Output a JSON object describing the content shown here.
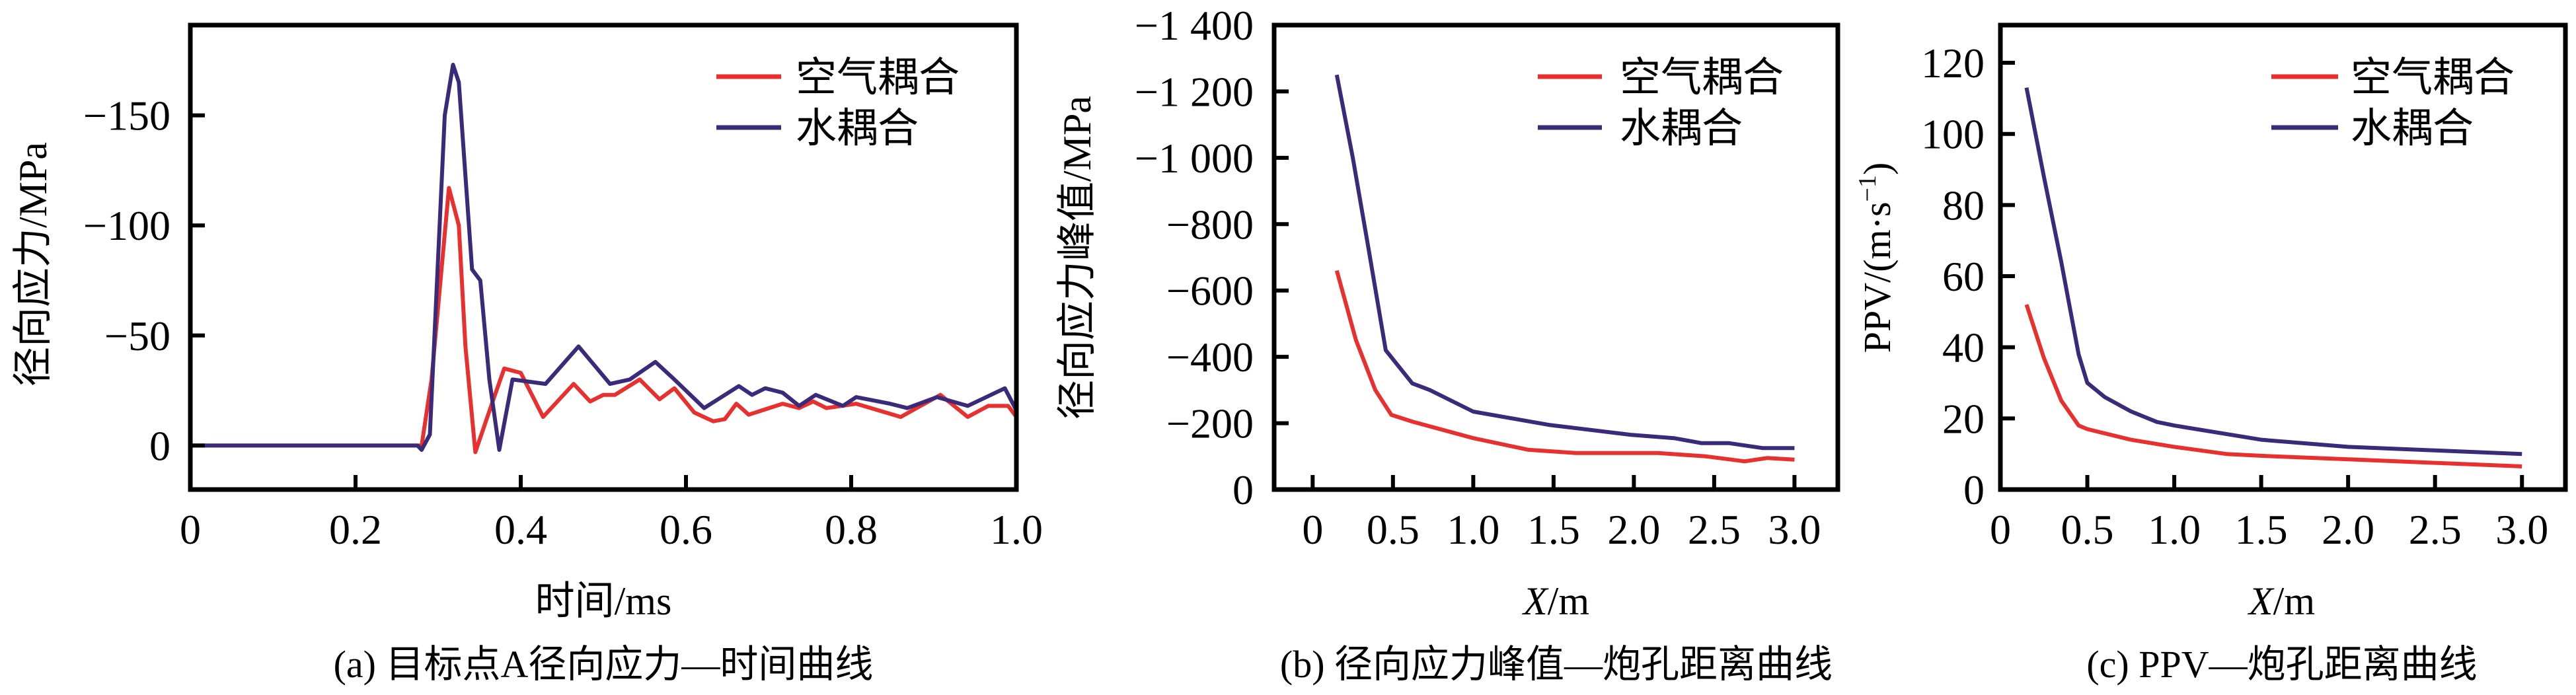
{
  "colors": {
    "air": "#e8302e",
    "water": "#3b2a7a",
    "axis": "#000000"
  },
  "legend": {
    "air": "空气耦合",
    "water": "水耦合"
  },
  "chart_data": [
    {
      "type": "line",
      "caption": "(a) 目标点A径向应力—时间曲线",
      "xlabel": "时间/ms",
      "ylabel": "径向应力/MPa",
      "xlim": [
        0,
        1.0
      ],
      "ylim": [
        -191,
        20
      ],
      "y_inverted": true,
      "xticks": [
        0,
        0.2,
        0.4,
        0.6,
        0.8,
        1.0
      ],
      "xtick_labels": [
        "0",
        "0.2",
        "0.4",
        "0.6",
        "0.8",
        "1.0"
      ],
      "yticks": [
        0,
        -50,
        -100,
        -150
      ],
      "ytick_labels": [
        "0",
        "−50",
        "−100",
        "−150"
      ],
      "legend_position": "top-right",
      "series": [
        {
          "name": "空气耦合",
          "key": "air",
          "x": [
            0,
            0.28,
            0.292,
            0.313,
            0.325,
            0.333,
            0.345,
            0.366,
            0.38,
            0.4,
            0.427,
            0.464,
            0.484,
            0.5,
            0.514,
            0.544,
            0.568,
            0.586,
            0.61,
            0.633,
            0.647,
            0.661,
            0.676,
            0.717,
            0.737,
            0.754,
            0.77,
            0.806,
            0.86,
            0.908,
            0.941,
            0.966,
            0.99,
            1.0
          ],
          "y": [
            0,
            0,
            -30,
            -117,
            -100,
            -45,
            3,
            -20,
            -35,
            -33,
            -13,
            -28,
            -20,
            -23,
            -23,
            -30,
            -21,
            -26,
            -15,
            -11,
            -12,
            -19,
            -14,
            -19,
            -17,
            -20,
            -17,
            -19,
            -13,
            -23,
            -13,
            -18,
            -18,
            -13
          ]
        },
        {
          "name": "水耦合",
          "key": "water",
          "x": [
            0,
            0.275,
            0.28,
            0.29,
            0.308,
            0.318,
            0.325,
            0.341,
            0.351,
            0.362,
            0.374,
            0.39,
            0.43,
            0.47,
            0.508,
            0.532,
            0.563,
            0.586,
            0.622,
            0.664,
            0.68,
            0.696,
            0.717,
            0.737,
            0.757,
            0.79,
            0.806,
            0.847,
            0.868,
            0.904,
            0.941,
            0.986,
            1.0
          ],
          "y": [
            0,
            0,
            2,
            -5,
            -150,
            -173,
            -165,
            -80,
            -75,
            -30,
            2,
            -30,
            -28,
            -45,
            -28,
            -30,
            -38,
            -30,
            -17,
            -27,
            -23,
            -26,
            -24,
            -18,
            -23,
            -18,
            -22,
            -19,
            -17,
            -22,
            -18,
            -26,
            -16
          ]
        }
      ]
    },
    {
      "type": "line",
      "caption": "(b) 径向应力峰值—炮孔距离曲线",
      "xlabel_italic": "X",
      "xlabel_unit": "/m",
      "ylabel": "径向应力峰值/MPa",
      "xlim": [
        -0.24,
        3.27
      ],
      "ylim": [
        -1400,
        0
      ],
      "y_inverted": true,
      "xticks": [
        0,
        0.5,
        1.0,
        1.5,
        2.0,
        2.5,
        3.0
      ],
      "xtick_labels": [
        "0",
        "0.5",
        "1.0",
        "1.5",
        "2.0",
        "2.5",
        "3.0"
      ],
      "yticks": [
        0,
        -200,
        -400,
        -600,
        -800,
        -1000,
        -1200,
        -1400
      ],
      "ytick_labels": [
        "0",
        "−200",
        "−400",
        "−600",
        "−800",
        "−1 000",
        "−1 200",
        "−1 400"
      ],
      "legend_position": "top-right",
      "series": [
        {
          "name": "空气耦合",
          "key": "air",
          "x": [
            0.15,
            0.27,
            0.39,
            0.49,
            0.62,
            1.0,
            1.34,
            1.64,
            2.15,
            2.45,
            2.69,
            2.83,
            3.0
          ],
          "y": [
            -660,
            -450,
            -300,
            -225,
            -205,
            -155,
            -120,
            -110,
            -110,
            -100,
            -85,
            -95,
            -90
          ]
        },
        {
          "name": "水耦合",
          "key": "water",
          "x": [
            0.15,
            0.25,
            0.35,
            0.455,
            0.62,
            0.73,
            1.0,
            1.47,
            1.98,
            2.25,
            2.42,
            2.59,
            2.8,
            3.0
          ],
          "y": [
            -1250,
            -1000,
            -720,
            -420,
            -320,
            -300,
            -235,
            -195,
            -165,
            -155,
            -140,
            -140,
            -125,
            -125
          ]
        }
      ]
    },
    {
      "type": "line",
      "caption": "(c) PPV—炮孔距离曲线",
      "xlabel_italic": "X",
      "xlabel_unit": "/m",
      "ylabel": "PPV/(m·s",
      "ylabel_sup": "−1",
      "ylabel_end": ")",
      "xlim": [
        0,
        3.25
      ],
      "ylim": [
        130.6,
        0
      ],
      "y_inverted": false,
      "xticks": [
        0,
        0.5,
        1.0,
        1.5,
        2.0,
        2.5,
        3.0
      ],
      "xtick_labels": [
        "0",
        "0.5",
        "1.0",
        "1.5",
        "2.0",
        "2.5",
        "3.0"
      ],
      "yticks": [
        0,
        20,
        40,
        60,
        80,
        100,
        120
      ],
      "ytick_labels": [
        "0",
        "20",
        "40",
        "60",
        "80",
        "100",
        "120"
      ],
      "legend_position": "top-right",
      "series": [
        {
          "name": "空气耦合",
          "key": "air",
          "x": [
            0.15,
            0.25,
            0.35,
            0.45,
            0.5,
            0.75,
            1.0,
            1.3,
            1.5,
            2.0,
            2.5,
            3.0
          ],
          "y": [
            52,
            37,
            25,
            18,
            17,
            14,
            12,
            10,
            9.5,
            8.5,
            7.5,
            6.5
          ]
        },
        {
          "name": "水耦合",
          "key": "water",
          "x": [
            0.15,
            0.25,
            0.35,
            0.45,
            0.5,
            0.6,
            0.75,
            0.9,
            1.0,
            1.5,
            2.0,
            2.5,
            3.0
          ],
          "y": [
            113,
            88,
            64,
            38,
            30,
            26,
            22,
            19,
            18,
            14,
            12,
            11,
            10
          ]
        }
      ]
    }
  ]
}
